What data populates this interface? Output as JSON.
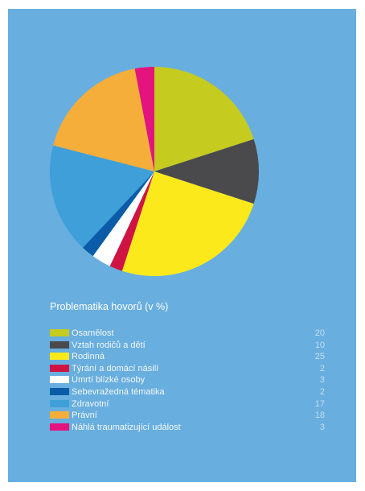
{
  "colors": {
    "background": "#68aede",
    "text": "#ffffff"
  },
  "chart_data": {
    "type": "pie",
    "title": "Problematika hovorů (v %)",
    "unit": "%",
    "legend_position": "bottom",
    "slices": [
      {
        "label": "Osamělost",
        "value": 20,
        "color": "#c5cb1f"
      },
      {
        "label": "Vztah rodičů a dětí",
        "value": 10,
        "color": "#4a4a4d"
      },
      {
        "label": "Rodinná",
        "value": 25,
        "color": "#fbe91c"
      },
      {
        "label": "Týrání a domácí násilí",
        "value": 2,
        "color": "#cf1444"
      },
      {
        "label": "Úmrtí blízké osoby",
        "value": 3,
        "color": "#ffffff"
      },
      {
        "label": "Sebevražedná tématika",
        "value": 2,
        "color": "#0b5ca8"
      },
      {
        "label": "Zdravotní",
        "value": 17,
        "color": "#3f9fd8"
      },
      {
        "label": "Právní",
        "value": 18,
        "color": "#f6ae3b"
      },
      {
        "label": "Náhlá traumatizující událost",
        "value": 3,
        "color": "#e4147e"
      }
    ]
  }
}
